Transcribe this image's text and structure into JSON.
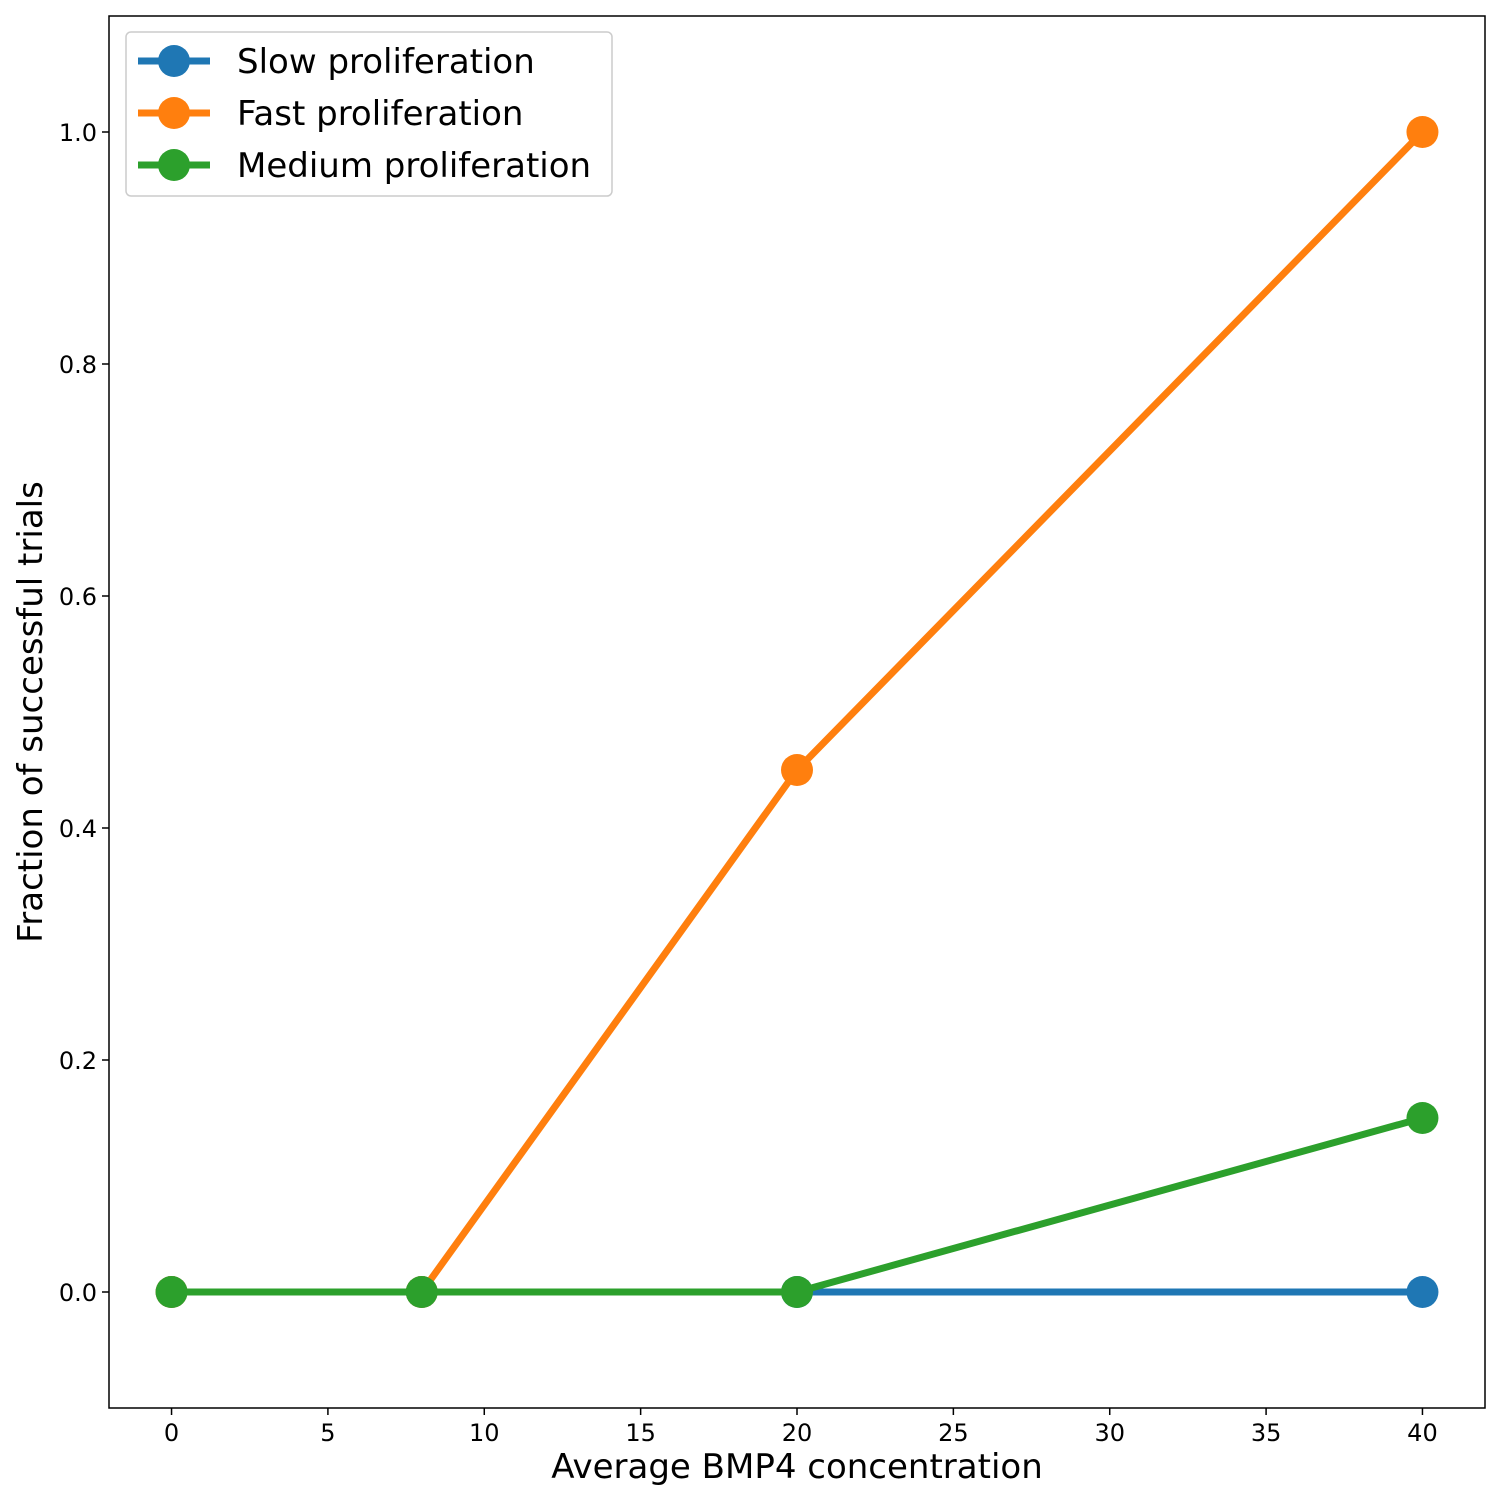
{
  "chart_data": {
    "type": "line",
    "title": "",
    "xlabel": "Average BMP4 concentration",
    "ylabel": "Fraction of successful trials",
    "x": [
      0,
      8,
      20,
      40
    ],
    "xlim": [
      -2,
      42
    ],
    "ylim": [
      -0.1,
      1.1
    ],
    "xticks": [
      0,
      5,
      10,
      15,
      20,
      25,
      30,
      35,
      40
    ],
    "yticks": [
      0.0,
      0.2,
      0.4,
      0.6,
      0.8,
      1.0
    ],
    "xtick_labels": [
      "0",
      "5",
      "10",
      "15",
      "20",
      "25",
      "30",
      "35",
      "40"
    ],
    "ytick_labels": [
      "0.0",
      "0.2",
      "0.4",
      "0.6",
      "0.8",
      "1.0"
    ],
    "grid": false,
    "legend_position": "top-left",
    "series": [
      {
        "name": "Slow proliferation",
        "color": "#1f77b4",
        "values": [
          0.0,
          0.0,
          0.0,
          0.0
        ]
      },
      {
        "name": "Fast proliferation",
        "color": "#ff7f0e",
        "values": [
          0.0,
          0.0,
          0.45,
          1.0
        ]
      },
      {
        "name": "Medium proliferation",
        "color": "#2ca02c",
        "values": [
          0.0,
          0.0,
          0.0,
          0.15
        ]
      }
    ]
  }
}
